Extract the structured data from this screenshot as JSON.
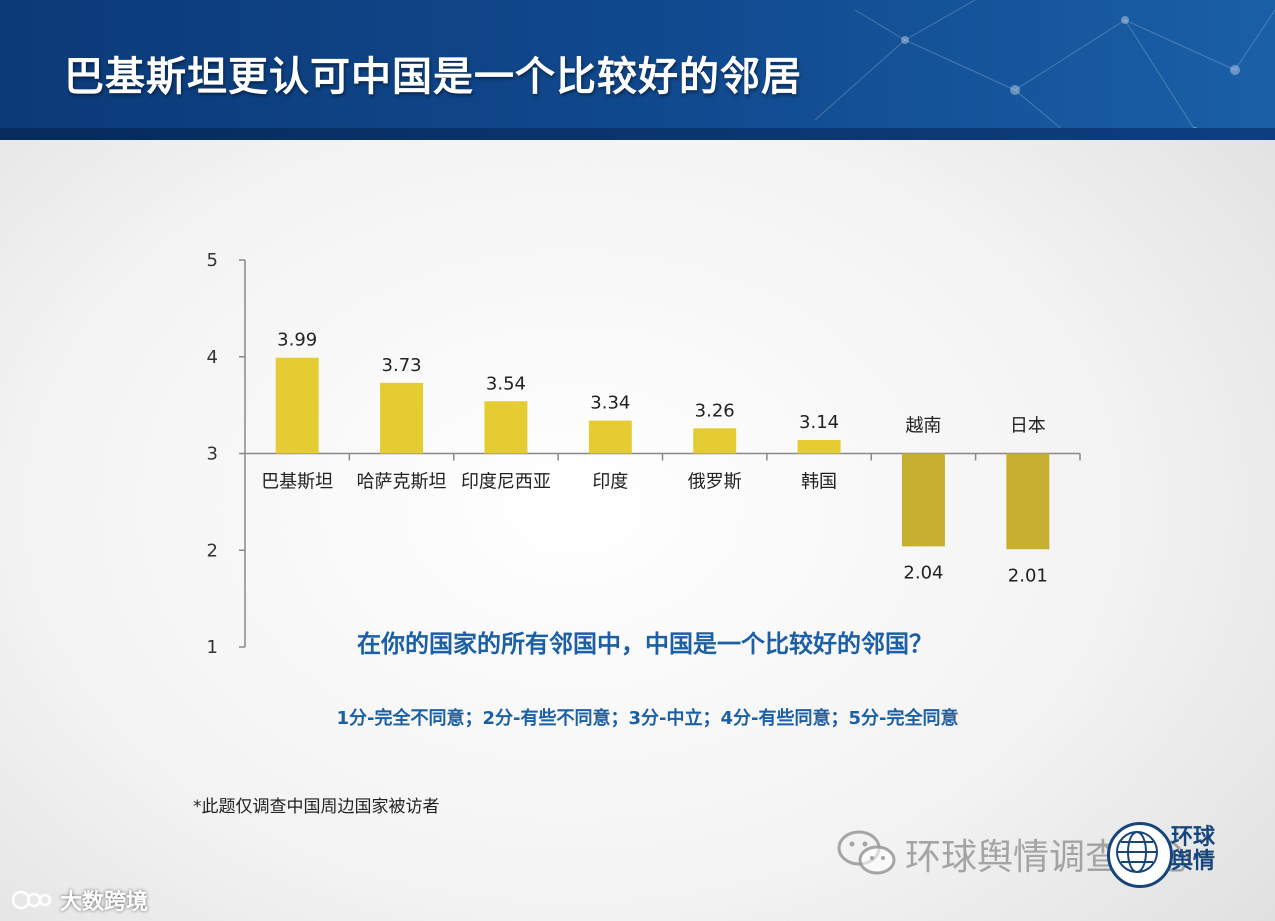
{
  "header": {
    "title": "巴基斯坦更认可中国是一个比较好的邻居"
  },
  "chart_data": {
    "type": "bar",
    "baseline": 3,
    "ylim": [
      1,
      5
    ],
    "yticks": [
      1,
      2,
      3,
      4,
      5
    ],
    "grid": false,
    "categories": [
      "巴基斯坦",
      "哈萨克斯坦",
      "印度尼西亚",
      "印度",
      "俄罗斯",
      "韩国",
      "越南",
      "日本"
    ],
    "values": [
      3.99,
      3.73,
      3.54,
      3.34,
      3.26,
      3.14,
      2.04,
      2.01
    ],
    "value_labels": [
      "3.99",
      "3.73",
      "3.54",
      "3.34",
      "3.26",
      "3.14",
      "2.04",
      "2.01"
    ],
    "colors": {
      "above": "#e5cc33",
      "below": "#c7b02f",
      "axis": "#888888"
    }
  },
  "question": "在你的国家的所有邻国中，中国是一个比较好的邻国？",
  "scale_note": "1分-完全不同意；2分-有些不同意；3分-中立；4分-有些同意；5分-完全同意",
  "footnote": "*此题仅调查中国周边国家被访者",
  "watermark": {
    "text": "环球舆情调查中心",
    "logo_text_1": "环球",
    "logo_text_2": "舆情",
    "icon": "wechat-icon"
  },
  "bottom_logo": {
    "text": "大数跨境",
    "icon": "kj-logo-icon"
  }
}
